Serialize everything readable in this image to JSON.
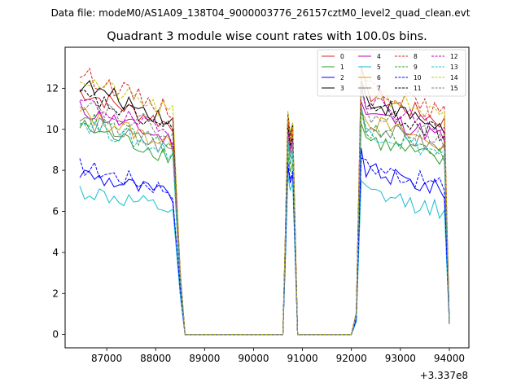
{
  "chart_data": {
    "type": "line",
    "suptitle": "Data file: modeM0/AS1A09_138T04_9000003776_26157cztM0_level2_quad_clean.evt",
    "title": "Quadrant 3 module wise count rates with 100.0s bins.",
    "xlabel": "",
    "ylabel": "",
    "offset_label": "+3.337e8",
    "xlim": [
      86150,
      94400
    ],
    "ylim": [
      -0.65,
      14.0
    ],
    "xticks": [
      87000,
      88000,
      89000,
      90000,
      91000,
      92000,
      93000,
      94000
    ],
    "yticks": [
      0,
      2,
      4,
      6,
      8,
      10,
      12
    ],
    "legend": {
      "placement": "top-right",
      "ncol": 4
    },
    "gaps": [
      [
        88600,
        90600
      ],
      [
        90900,
        92000
      ]
    ],
    "x_segments": [
      [
        86450,
        88600
      ],
      [
        90600,
        90900
      ],
      [
        92000,
        94000
      ]
    ],
    "series": [
      {
        "name": "0",
        "color": "#d62728",
        "dash": "solid",
        "level": 11.0,
        "level2": 10.6,
        "peak": 10.4
      },
      {
        "name": "1",
        "color": "#2ca02c",
        "dash": "solid",
        "level": 9.4,
        "level2": 8.6,
        "peak": 8.8
      },
      {
        "name": "2",
        "color": "#0000ff",
        "dash": "solid",
        "level": 7.3,
        "level2": 7.2,
        "peak": 8.2
      },
      {
        "name": "3",
        "color": "#000000",
        "dash": "solid",
        "level": 11.3,
        "level2": 10.3,
        "peak": 10.8
      },
      {
        "name": "4",
        "color": "#bf00bf",
        "dash": "solid",
        "level": 10.2,
        "level2": 9.8,
        "peak": 10.0
      },
      {
        "name": "5",
        "color": "#17becf",
        "dash": "solid",
        "level": 6.5,
        "level2": 6.2,
        "peak": 7.8
      },
      {
        "name": "6",
        "color": "#d4a017",
        "dash": "solid",
        "level": 10.0,
        "level2": 9.4,
        "peak": 10.5
      },
      {
        "name": "7",
        "color": "#808080",
        "dash": "solid",
        "level": 9.7,
        "level2": 9.2,
        "peak": 9.6
      },
      {
        "name": "8",
        "color": "#d62728",
        "dash": "dashed",
        "level": 11.8,
        "level2": 11.0,
        "peak": 10.6
      },
      {
        "name": "9",
        "color": "#2ca02c",
        "dash": "dashed",
        "level": 9.8,
        "level2": 9.0,
        "peak": 9.2
      },
      {
        "name": "10",
        "color": "#0000ff",
        "dash": "dashed",
        "level": 7.6,
        "level2": 7.4,
        "peak": 8.4
      },
      {
        "name": "11",
        "color": "#000000",
        "dash": "dashed",
        "level": 10.8,
        "level2": 10.0,
        "peak": 10.2
      },
      {
        "name": "12",
        "color": "#bf00bf",
        "dash": "dashed",
        "level": 10.5,
        "level2": 10.3,
        "peak": 9.9
      },
      {
        "name": "13",
        "color": "#17becf",
        "dash": "dashed",
        "level": 9.6,
        "level2": 9.0,
        "peak": 9.4
      },
      {
        "name": "14",
        "color": "#c8c800",
        "dash": "dashed",
        "level": 11.6,
        "level2": 10.8,
        "peak": 10.9
      },
      {
        "name": "15",
        "color": "#808080",
        "dash": "dashed",
        "level": 10.6,
        "level2": 9.7,
        "peak": 9.8
      }
    ]
  }
}
